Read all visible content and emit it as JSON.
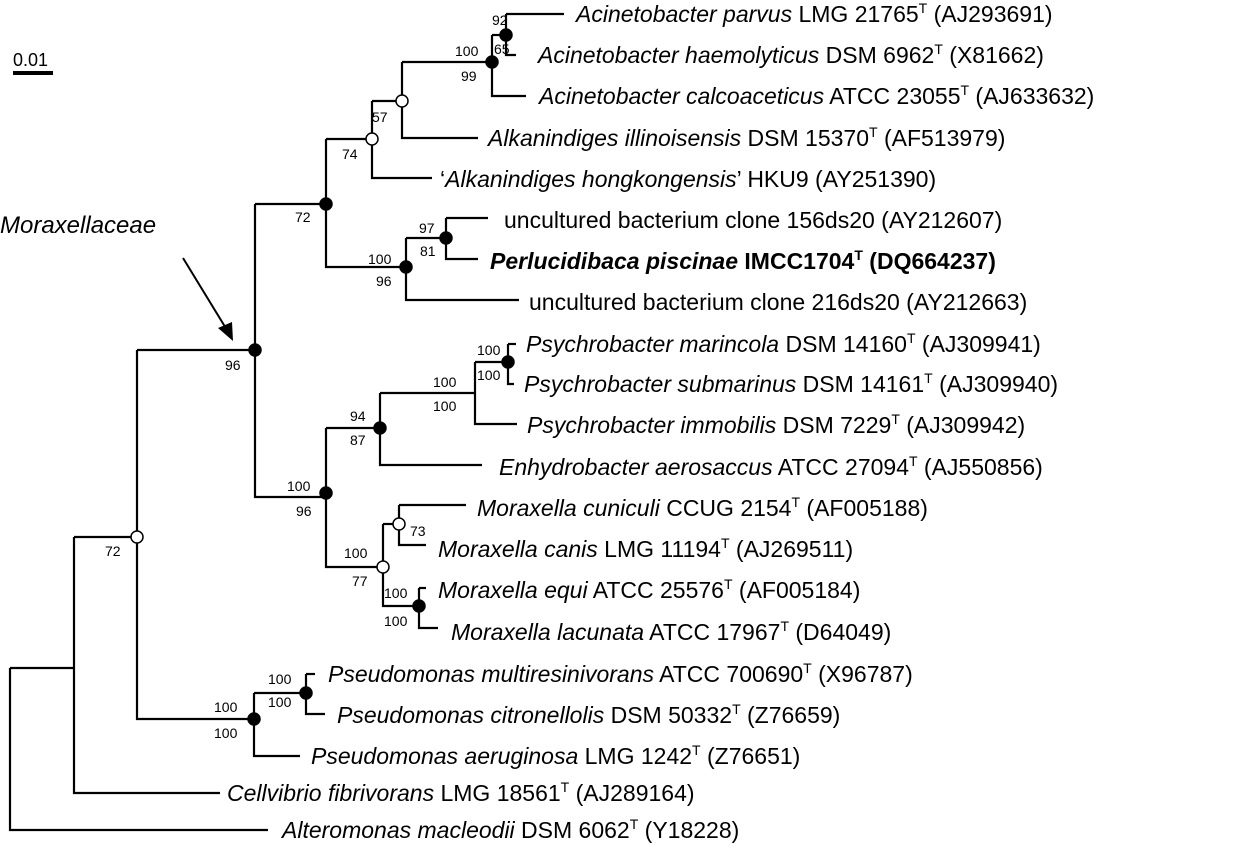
{
  "scale": {
    "label": "0.01"
  },
  "family_label": "Moraxellaceae",
  "leaves": [
    {
      "id": "acinetobacter-parvus",
      "pre": "",
      "species": "Acinetobacter parvus",
      "strain": " LMG 21765",
      "sup": "T",
      "acc": " (AJ293691)"
    },
    {
      "id": "acinetobacter-haemolyticus",
      "pre": "",
      "species": "Acinetobacter haemolyticus",
      "strain": " DSM 6962",
      "sup": "T",
      "acc": " (X81662)"
    },
    {
      "id": "acinetobacter-calcoaceticus",
      "pre": "",
      "species": "Acinetobacter calcoaceticus",
      "strain": " ATCC 23055",
      "sup": "T",
      "acc": " (AJ633632)"
    },
    {
      "id": "alkanindiges-illinoisensis",
      "pre": "",
      "species": "Alkanindiges illinoisensis",
      "strain": " DSM 15370",
      "sup": "T",
      "acc": " (AF513979)"
    },
    {
      "id": "alkanindiges-hongkongensis",
      "pre": "‘",
      "species": "Alkanindiges hongkongensis",
      "strain": "’ HKU9 (AY251390)",
      "sup": "",
      "acc": ""
    },
    {
      "id": "uncultured-156ds20",
      "pre": "",
      "species": "",
      "strain": "uncultured bacterium clone 156ds20 (AY212607)",
      "sup": "",
      "acc": ""
    },
    {
      "id": "perlucidibaca-piscinae",
      "pre": "",
      "species": "Perlucidibaca piscinae",
      "strain": " IMCC1704",
      "sup": "T",
      "acc": " (DQ664237)",
      "bold": true
    },
    {
      "id": "uncultured-216ds20",
      "pre": "",
      "species": "",
      "strain": "uncultured bacterium clone 216ds20 (AY212663)",
      "sup": "",
      "acc": ""
    },
    {
      "id": "psychrobacter-marincola",
      "pre": "",
      "species": "Psychrobacter marincola",
      "strain": " DSM 14160",
      "sup": "T",
      "acc": " (AJ309941)"
    },
    {
      "id": "psychrobacter-submarinus",
      "pre": "",
      "species": "Psychrobacter submarinus",
      "strain": " DSM 14161",
      "sup": "T",
      "acc": " (AJ309940)"
    },
    {
      "id": "psychrobacter-immobilis",
      "pre": "",
      "species": "Psychrobacter immobilis",
      "strain": " DSM 7229",
      "sup": "T",
      "acc": " (AJ309942)"
    },
    {
      "id": "enhydrobacter-aerosaccus",
      "pre": "",
      "species": "Enhydrobacter aerosaccus",
      "strain": " ATCC 27094",
      "sup": "T",
      "acc": " (AJ550856)"
    },
    {
      "id": "moraxella-cuniculi",
      "pre": "",
      "species": "Moraxella cuniculi",
      "strain": " CCUG 2154",
      "sup": "T",
      "acc": " (AF005188)"
    },
    {
      "id": "moraxella-canis",
      "pre": "",
      "species": "Moraxella canis",
      "strain": " LMG 11194",
      "sup": "T",
      "acc": " (AJ269511)"
    },
    {
      "id": "moraxella-equi",
      "pre": "",
      "species": "Moraxella equi",
      "strain": " ATCC 25576",
      "sup": "T",
      "acc": " (AF005184)"
    },
    {
      "id": "moraxella-lacunata",
      "pre": "",
      "species": "Moraxella lacunata",
      "strain": " ATCC 17967",
      "sup": "T",
      "acc": " (D64049)"
    },
    {
      "id": "pseudomonas-multiresinivorans",
      "pre": "",
      "species": "Pseudomonas multiresinivorans",
      "strain": " ATCC 700690",
      "sup": "T",
      "acc": " (X96787)"
    },
    {
      "id": "pseudomonas-citronellolis",
      "pre": "",
      "species": "Pseudomonas citronellolis",
      "strain": " DSM 50332",
      "sup": "T",
      "acc": " (Z76659)"
    },
    {
      "id": "pseudomonas-aeruginosa",
      "pre": "",
      "species": "Pseudomonas aeruginosa",
      "strain": " LMG 1242",
      "sup": "T",
      "acc": " (Z76651)"
    },
    {
      "id": "cellvibrio-fibrivorans",
      "pre": "",
      "species": "Cellvibrio fibrivorans",
      "strain": " LMG 18561",
      "sup": "T",
      "acc": " (AJ289164)"
    },
    {
      "id": "alteromonas-macleodii",
      "pre": "",
      "species": "Alteromonas macleodii",
      "strain": " DSM 6062",
      "sup": "T",
      "acc": " (Y18228)"
    }
  ],
  "bootstrap": {
    "acinetobacter_parvus_haemolyticus": [
      "92",
      "65"
    ],
    "acinetobacter": [
      "100",
      "99"
    ],
    "acinetobacter_alkanindiges": "57",
    "alkanindiges_group": "74",
    "upper_moraxellaceae": "72",
    "uncultured_perlucidibaca": [
      "97",
      "81"
    ],
    "perlucidibaca_group": [
      "100",
      "96"
    ],
    "moraxellaceae": "96",
    "psychrobacter_marincola_submarinus": [
      "100",
      "100"
    ],
    "psychrobacter": [
      "100",
      "100"
    ],
    "psychrobacter_enhydrobacter": [
      "94",
      "87"
    ],
    "lower_moraxellaceae": [
      "100",
      "96"
    ],
    "moraxella_cuniculi_canis": "73",
    "moraxella": [
      "100",
      "77"
    ],
    "moraxella_equi_lacunata": [
      "100",
      "100"
    ],
    "pseudomonas_multiresinivorans_citronellolis": [
      "100",
      "100"
    ],
    "pseudomonas": [
      "100",
      "100"
    ],
    "moraxellaceae_pseudomonas": "72"
  }
}
